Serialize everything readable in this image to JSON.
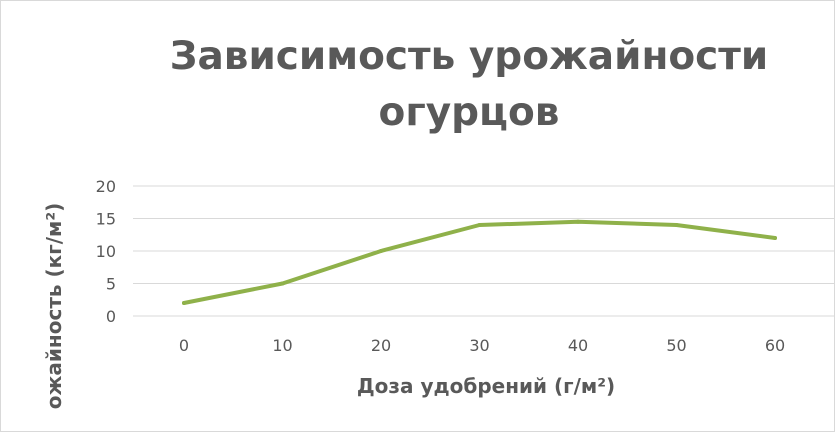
{
  "chart_data": {
    "type": "line",
    "title": "Зависимость урожайности огурцов",
    "title_lines": [
      "Зависимость урожайности",
      "огурцов"
    ],
    "xlabel": "Доза удобрений (г/м²)",
    "ylabel": "ожайность  (кг/м²)",
    "x": [
      0,
      10,
      20,
      30,
      40,
      50,
      60
    ],
    "x_tick_labels": [
      "0",
      "10",
      "20",
      "30",
      "40",
      "50",
      "60"
    ],
    "y_ticks": [
      0,
      5,
      10,
      15,
      20
    ],
    "y_tick_labels": [
      "0",
      "5",
      "10",
      "15",
      "20"
    ],
    "ylim": [
      0,
      20
    ],
    "grid": true,
    "legend": "none",
    "series": [
      {
        "values": [
          2,
          5,
          10,
          14,
          14.5,
          14,
          12
        ],
        "color": "#8fb14a"
      }
    ],
    "colors": {
      "text": "#595959",
      "gridline": "#d9d9d9",
      "border": "#d9d9d9"
    }
  }
}
